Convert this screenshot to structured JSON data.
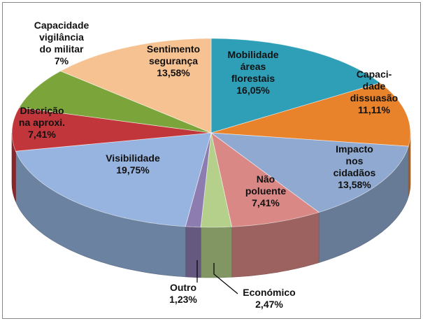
{
  "chart_data": {
    "type": "pie3d",
    "categories": [
      "Mobilidade\náreas\nflorestais",
      "Capaci-\ndade\ndissuasão",
      "Impacto\nnos\ncidadãos",
      "Não\npoluente",
      "Económico",
      "Outro",
      "Visibilidade",
      "Discrição\nna aproxi.",
      "Capacidade\nvigilância\ndo militar",
      "Sentimento\nsegurança"
    ],
    "values": [
      16.05,
      11.11,
      13.58,
      7.41,
      2.47,
      1.23,
      19.75,
      7.41,
      7,
      13.58
    ],
    "value_labels": [
      "16,05%",
      "11,11%",
      "13,58%",
      "7,41%",
      "2,47%",
      "1,23%",
      "19,75%",
      "7,41%",
      "7%",
      "13,58%"
    ],
    "colors": [
      "#2f9fb8",
      "#e8832c",
      "#8fa9d1",
      "#d98886",
      "#b5d08a",
      "#8d7cb0",
      "#96b4df",
      "#c1363b",
      "#7ba53a",
      "#f6c292"
    ]
  }
}
